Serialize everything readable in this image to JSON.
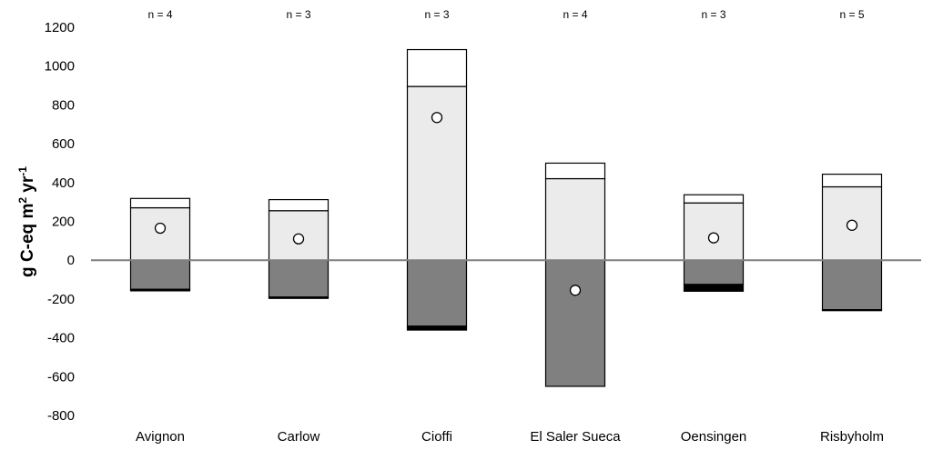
{
  "chart_data": {
    "type": "bar",
    "ylabel": "g C-eq m2 yr-1",
    "ylabel_parts": {
      "base": "g C-eq m",
      "sup1": "2",
      "mid": " yr",
      "sup2": "-1"
    },
    "ylim": [
      -800,
      1200
    ],
    "yticks": [
      -800,
      -600,
      -400,
      -200,
      0,
      200,
      400,
      600,
      800,
      1000,
      1200
    ],
    "grid": false,
    "categories": [
      "Avignon",
      "Carlow",
      "Cioffi",
      "El Saler Sueca",
      "Oensingen",
      "Risbyholm"
    ],
    "annotations": [
      "n = 4",
      "n = 3",
      "n = 3",
      "n = 4",
      "n = 3",
      "n = 5"
    ],
    "series": [
      {
        "values": [
          270,
          255,
          895,
          420,
          295,
          378
        ],
        "color": "#ebebeb"
      },
      {
        "values": [
          48,
          57,
          190,
          80,
          42,
          65
        ],
        "color": "#ffffff"
      },
      {
        "values": [
          -150,
          -190,
          -340,
          -650,
          -125,
          -255
        ],
        "color": "#808080"
      },
      {
        "values": [
          -8,
          -7,
          -20,
          0,
          -35,
          -5
        ],
        "color": "#000000"
      }
    ],
    "points": [
      165,
      110,
      735,
      -155,
      115,
      180
    ],
    "colors": {
      "axis": "#7f7f7f",
      "outline": "#000000"
    }
  }
}
